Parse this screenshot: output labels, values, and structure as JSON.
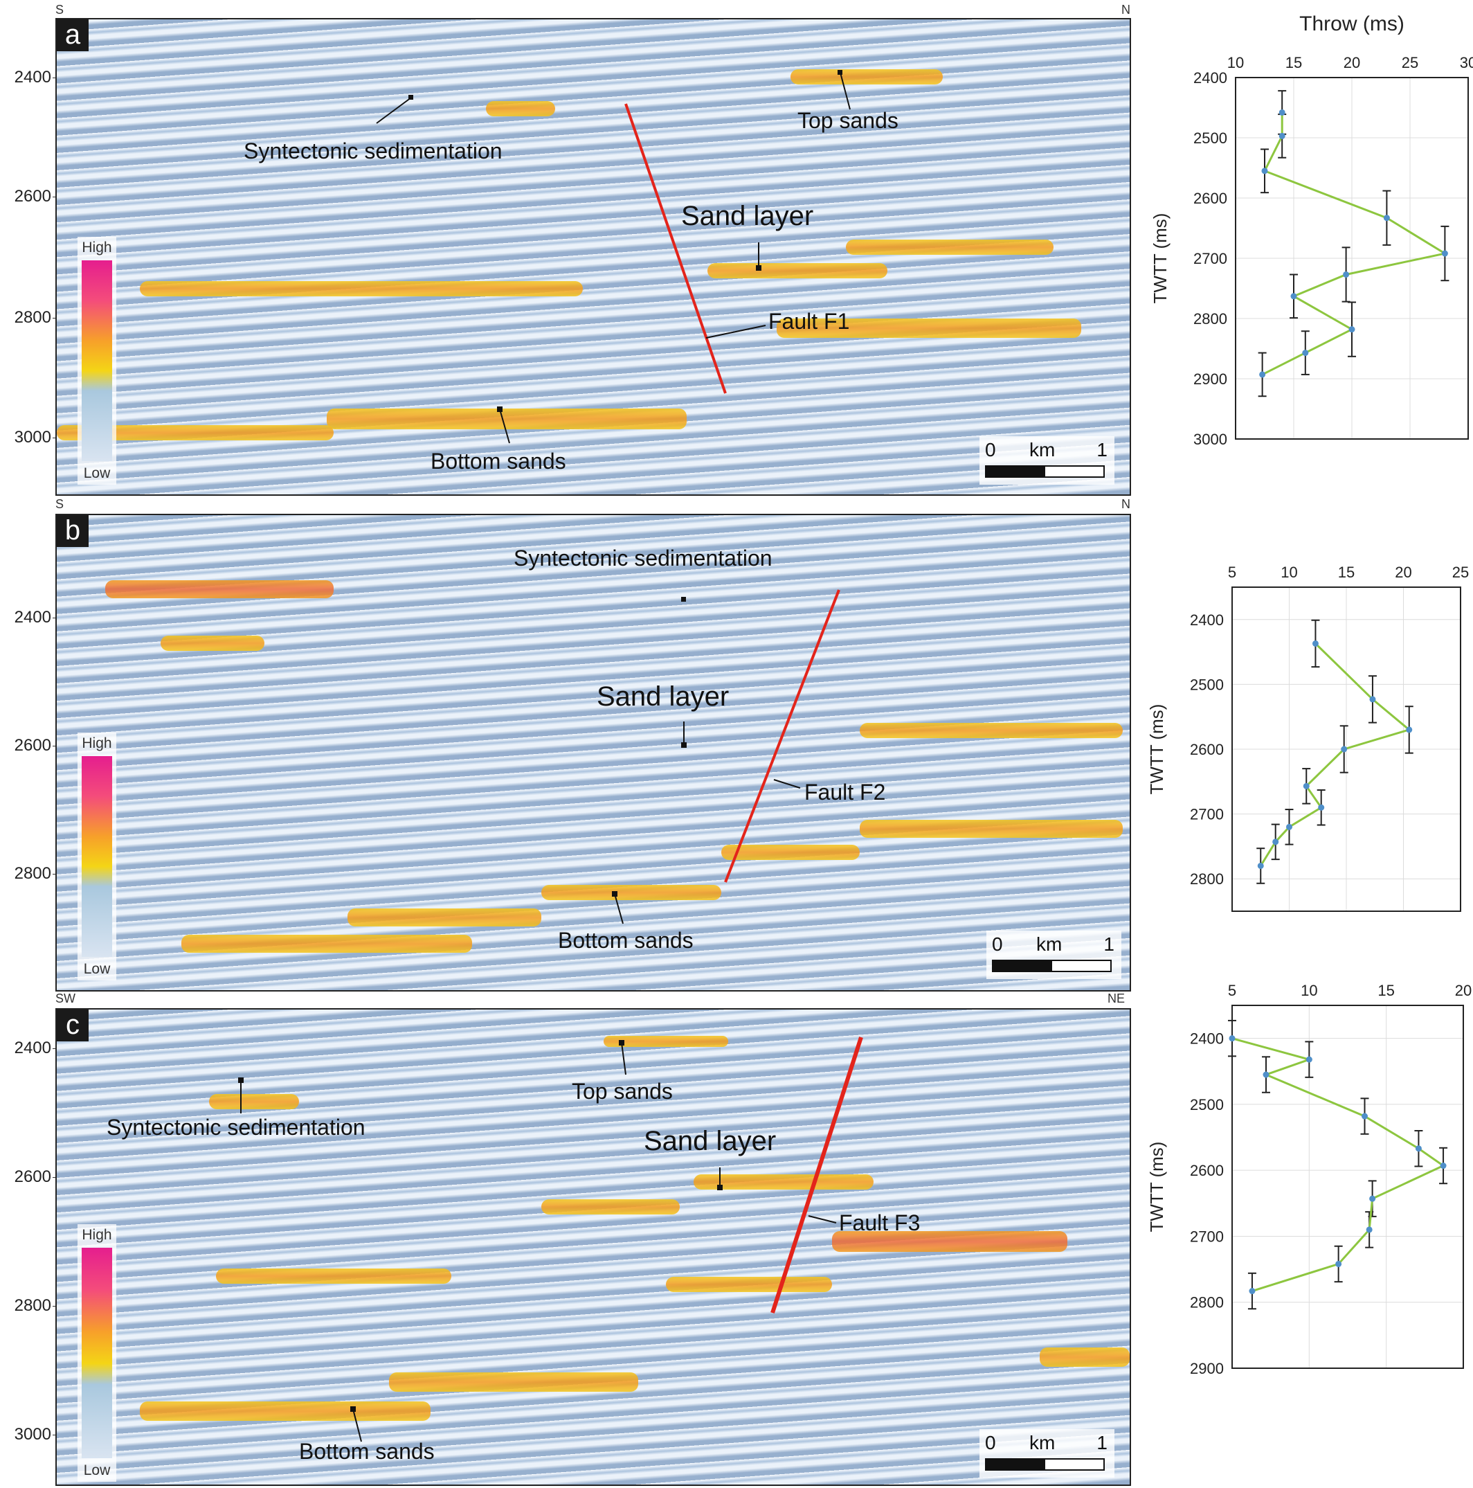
{
  "panels": [
    {
      "letter": "a",
      "orient_left": "S",
      "orient_right": "N",
      "yticks": [
        "2400",
        "2600",
        "2800",
        "3000"
      ],
      "labels": {
        "syntectonic": "Syntectonic sedimentation",
        "top_sands": "Top sands",
        "sand_layer": "Sand layer",
        "fault": "Fault F1",
        "bottom_sands": "Bottom sands"
      },
      "colorbar": {
        "high": "High",
        "low": "Low"
      },
      "scale": {
        "zero": "0",
        "unit": "km",
        "one": "1"
      }
    },
    {
      "letter": "b",
      "orient_left": "S",
      "orient_right": "N",
      "yticks": [
        "2400",
        "2600",
        "2800"
      ],
      "labels": {
        "syntectonic": "Syntectonic sedimentation",
        "sand_layer": "Sand layer",
        "fault": "Fault F2",
        "bottom_sands": "Bottom sands"
      },
      "colorbar": {
        "high": "High",
        "low": "Low"
      },
      "scale": {
        "zero": "0",
        "unit": "km",
        "one": "1"
      }
    },
    {
      "letter": "c",
      "orient_left": "SW",
      "orient_right": "NE",
      "yticks": [
        "2400",
        "2600",
        "2800",
        "3000"
      ],
      "labels": {
        "syntectonic": "Syntectonic sedimentation",
        "top_sands": "Top sands",
        "sand_layer": "Sand layer",
        "fault": "Fault F3",
        "bottom_sands": "Bottom sands"
      },
      "colorbar": {
        "high": "High",
        "low": "Low"
      },
      "scale": {
        "zero": "0",
        "unit": "km",
        "one": "1"
      }
    }
  ],
  "colors": {
    "fault": "#e3241b",
    "profile_line": "#8dc63f",
    "point": "#4f8fc9",
    "errorbar": "#222222"
  },
  "chart_data": [
    {
      "type": "line",
      "title": "Throw (ms)",
      "xlabel": "",
      "ylabel": "TWTT (ms)",
      "xlim": [
        10,
        30
      ],
      "ylim": [
        3000,
        2400
      ],
      "xticks": [
        "10",
        "15",
        "20",
        "25",
        "30"
      ],
      "yticks": [
        "2400",
        "2500",
        "2600",
        "2700",
        "2800",
        "2900",
        "3000"
      ],
      "grid": true,
      "points": [
        {
          "throw": 14,
          "twtt": 2458,
          "err": 4
        },
        {
          "throw": 14,
          "twtt": 2497,
          "err": 4
        },
        {
          "throw": 12.5,
          "twtt": 2555,
          "err": 4
        },
        {
          "throw": 23,
          "twtt": 2633,
          "err": 5
        },
        {
          "throw": 28,
          "twtt": 2692,
          "err": 5
        },
        {
          "throw": 19.5,
          "twtt": 2727,
          "err": 5
        },
        {
          "throw": 15,
          "twtt": 2763,
          "err": 4
        },
        {
          "throw": 20,
          "twtt": 2818,
          "err": 5
        },
        {
          "throw": 16,
          "twtt": 2857,
          "err": 4
        },
        {
          "throw": 12.3,
          "twtt": 2893,
          "err": 4
        }
      ]
    },
    {
      "type": "line",
      "title": "",
      "xlabel": "",
      "ylabel": "TWTT (ms)",
      "xlim": [
        5,
        25
      ],
      "ylim": [
        2850,
        2350
      ],
      "xticks": [
        "5",
        "10",
        "15",
        "20",
        "25"
      ],
      "yticks": [
        "2400",
        "2500",
        "2600",
        "2700",
        "2800"
      ],
      "grid": true,
      "points": [
        {
          "throw": 12.3,
          "twtt": 2437,
          "err": 4
        },
        {
          "throw": 17.3,
          "twtt": 2523,
          "err": 4
        },
        {
          "throw": 20.5,
          "twtt": 2570,
          "err": 4
        },
        {
          "throw": 14.8,
          "twtt": 2600,
          "err": 4
        },
        {
          "throw": 11.5,
          "twtt": 2657,
          "err": 3
        },
        {
          "throw": 12.8,
          "twtt": 2690,
          "err": 3
        },
        {
          "throw": 10,
          "twtt": 2720,
          "err": 3
        },
        {
          "throw": 8.8,
          "twtt": 2743,
          "err": 3
        },
        {
          "throw": 7.5,
          "twtt": 2780,
          "err": 3
        }
      ]
    },
    {
      "type": "line",
      "title": "",
      "xlabel": "",
      "ylabel": "TWTT (ms)",
      "xlim": [
        5,
        20
      ],
      "ylim": [
        2900,
        2350
      ],
      "xticks": [
        "5",
        "10",
        "15",
        "20"
      ],
      "yticks": [
        "2400",
        "2500",
        "2600",
        "2700",
        "2800",
        "2900"
      ],
      "grid": true,
      "points": [
        {
          "throw": 5,
          "twtt": 2400,
          "err": 3
        },
        {
          "throw": 10,
          "twtt": 2432,
          "err": 3
        },
        {
          "throw": 7.2,
          "twtt": 2455,
          "err": 3
        },
        {
          "throw": 13.6,
          "twtt": 2518,
          "err": 3
        },
        {
          "throw": 17.1,
          "twtt": 2567,
          "err": 3
        },
        {
          "throw": 18.7,
          "twtt": 2593,
          "err": 3
        },
        {
          "throw": 14.1,
          "twtt": 2643,
          "err": 3
        },
        {
          "throw": 13.9,
          "twtt": 2690,
          "err": 3
        },
        {
          "throw": 11.9,
          "twtt": 2742,
          "err": 3
        },
        {
          "throw": 6.3,
          "twtt": 2783,
          "err": 3
        }
      ]
    }
  ]
}
